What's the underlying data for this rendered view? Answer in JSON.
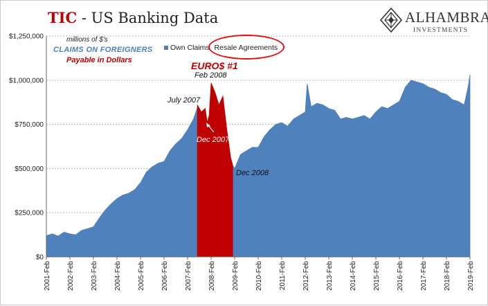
{
  "header": {
    "title_accent": "TIC",
    "title_rest": " - US Banking Data"
  },
  "logo": {
    "name": "ALHAMBRA",
    "sub": "INVESTMENTS",
    "icon": "diamond-lattice-icon"
  },
  "labels": {
    "units": "millions of $'s",
    "claims": "CLAIMS ON FOREIGNERS",
    "payable": "Payable in Dollars"
  },
  "annotations": {
    "euro": "EURO$ #1",
    "feb2008": "Feb 2008",
    "jul2007": "July 2007",
    "dec2007": "Dec 2007",
    "dec2008": "Dec 2008"
  },
  "colors": {
    "own_claims": "#4f81bd",
    "resale": "#c00000",
    "highlight_oval": "#e01010",
    "title_accent": "#c00000"
  },
  "chart_data": {
    "type": "area",
    "title": "TIC - US Banking Data",
    "ylabel": "",
    "xlabel": "",
    "ylim": [
      0,
      1250000
    ],
    "yticks": [
      0,
      250000,
      500000,
      750000,
      1000000,
      1250000
    ],
    "ytick_labels": [
      "$0",
      "$250,000",
      "$500,000",
      "$750,000",
      "$1,000,000",
      "$1,250,000"
    ],
    "xtick_labels": [
      "2001-Feb",
      "2002-Feb",
      "2003-Feb",
      "2004-Feb",
      "2005-Feb",
      "2006-Feb",
      "2007-Feb",
      "2008-Feb",
      "2009-Feb",
      "2010-Feb",
      "2011-Feb",
      "2012-Feb",
      "2013-Feb",
      "2014-Feb",
      "2015-Feb",
      "2016-Feb",
      "2017-Feb",
      "2018-Feb",
      "2019-Feb"
    ],
    "grid": true,
    "legend_position": "top",
    "series": [
      {
        "name": "Own Claims",
        "points": [
          [
            "2001-02",
            120000
          ],
          [
            "2001-05",
            130000
          ],
          [
            "2001-08",
            118000
          ],
          [
            "2001-11",
            140000
          ],
          [
            "2002-02",
            130000
          ],
          [
            "2002-05",
            125000
          ],
          [
            "2002-08",
            150000
          ],
          [
            "2002-11",
            160000
          ],
          [
            "2003-02",
            170000
          ],
          [
            "2003-05",
            220000
          ],
          [
            "2003-08",
            265000
          ],
          [
            "2003-11",
            300000
          ],
          [
            "2004-02",
            330000
          ],
          [
            "2004-05",
            350000
          ],
          [
            "2004-08",
            360000
          ],
          [
            "2004-11",
            380000
          ],
          [
            "2005-02",
            420000
          ],
          [
            "2005-05",
            480000
          ],
          [
            "2005-08",
            510000
          ],
          [
            "2005-11",
            530000
          ],
          [
            "2006-02",
            540000
          ],
          [
            "2006-05",
            600000
          ],
          [
            "2006-08",
            640000
          ],
          [
            "2006-11",
            670000
          ],
          [
            "2007-02",
            720000
          ],
          [
            "2007-05",
            780000
          ],
          [
            "2007-07",
            845000
          ],
          [
            "2009-02",
            500000
          ],
          [
            "2009-05",
            580000
          ],
          [
            "2009-08",
            600000
          ],
          [
            "2009-11",
            620000
          ],
          [
            "2010-02",
            620000
          ],
          [
            "2010-05",
            680000
          ],
          [
            "2010-08",
            720000
          ],
          [
            "2010-11",
            750000
          ],
          [
            "2011-02",
            760000
          ],
          [
            "2011-05",
            740000
          ],
          [
            "2011-08",
            780000
          ],
          [
            "2011-11",
            800000
          ],
          [
            "2012-02",
            820000
          ],
          [
            "2012-03",
            980000
          ],
          [
            "2012-05",
            850000
          ],
          [
            "2012-08",
            870000
          ],
          [
            "2012-11",
            860000
          ],
          [
            "2013-02",
            840000
          ],
          [
            "2013-05",
            830000
          ],
          [
            "2013-08",
            780000
          ],
          [
            "2013-11",
            790000
          ],
          [
            "2014-02",
            780000
          ],
          [
            "2014-05",
            790000
          ],
          [
            "2014-08",
            800000
          ],
          [
            "2014-11",
            780000
          ],
          [
            "2015-02",
            820000
          ],
          [
            "2015-05",
            850000
          ],
          [
            "2015-08",
            840000
          ],
          [
            "2015-11",
            860000
          ],
          [
            "2016-02",
            880000
          ],
          [
            "2016-05",
            960000
          ],
          [
            "2016-08",
            1000000
          ],
          [
            "2016-11",
            990000
          ],
          [
            "2017-02",
            980000
          ],
          [
            "2017-05",
            960000
          ],
          [
            "2017-08",
            950000
          ],
          [
            "2017-11",
            930000
          ],
          [
            "2018-02",
            920000
          ],
          [
            "2018-05",
            890000
          ],
          [
            "2018-08",
            880000
          ],
          [
            "2018-11",
            860000
          ],
          [
            "2019-01",
            960000
          ],
          [
            "2019-02",
            1030000
          ]
        ]
      },
      {
        "name": "Resale Agreements",
        "points": [
          [
            "2007-07",
            860000
          ],
          [
            "2007-09",
            820000
          ],
          [
            "2007-11",
            840000
          ],
          [
            "2007-12",
            760000
          ],
          [
            "2008-01",
            800000
          ],
          [
            "2008-02",
            985000
          ],
          [
            "2008-04",
            930000
          ],
          [
            "2008-06",
            860000
          ],
          [
            "2008-08",
            910000
          ],
          [
            "2008-10",
            720000
          ],
          [
            "2008-12",
            560000
          ],
          [
            "2009-01",
            520000
          ]
        ]
      }
    ]
  }
}
